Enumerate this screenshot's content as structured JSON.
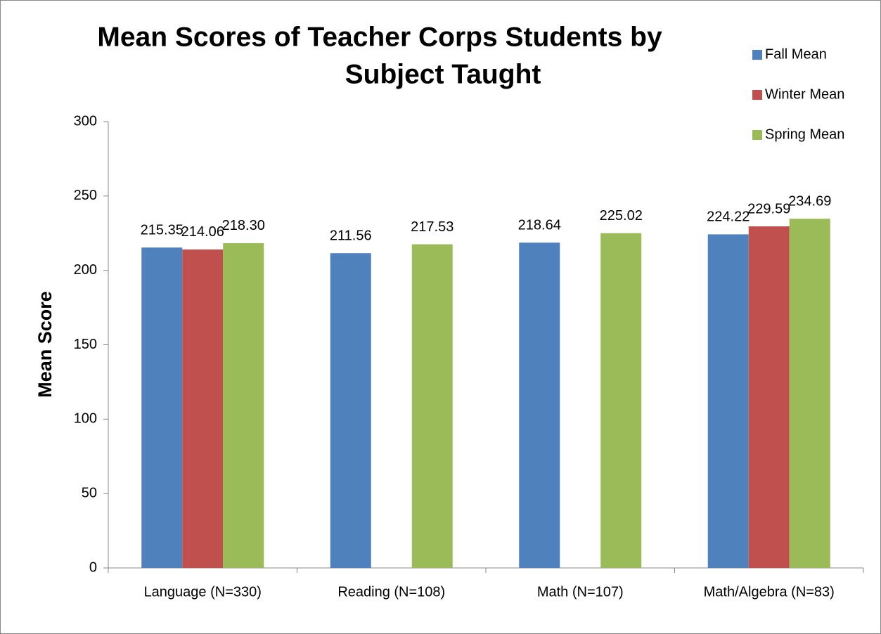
{
  "chart_data": {
    "type": "bar",
    "title": [
      "Mean Scores of Teacher Corps Students by",
      "Subject Taught"
    ],
    "y_label": "Mean Score",
    "categories": [
      "Language (N=330)",
      "Reading (N=108)",
      "Math (N=107)",
      "Math/Algebra (N=83)"
    ],
    "series": [
      {
        "name": "Fall Mean",
        "color": "#4f81bd",
        "values": [
          215.35,
          211.56,
          218.64,
          224.22
        ],
        "value_labels": [
          "215.35",
          "211.56",
          "218.64",
          "224.22"
        ]
      },
      {
        "name": "Winter Mean",
        "color": "#c0504d",
        "values": [
          214.06,
          null,
          null,
          229.59
        ],
        "value_labels": [
          "214.06",
          null,
          null,
          "229.59"
        ]
      },
      {
        "name": "Spring Mean",
        "color": "#9bbb59",
        "values": [
          218.3,
          217.53,
          225.02,
          234.69
        ],
        "value_labels": [
          "218.30",
          "217.53",
          "225.02",
          "234.69"
        ]
      }
    ],
    "ylim": [
      0,
      300
    ],
    "yticks": [
      0,
      50,
      100,
      150,
      200,
      250,
      300
    ],
    "grid": false,
    "legend": "right"
  }
}
